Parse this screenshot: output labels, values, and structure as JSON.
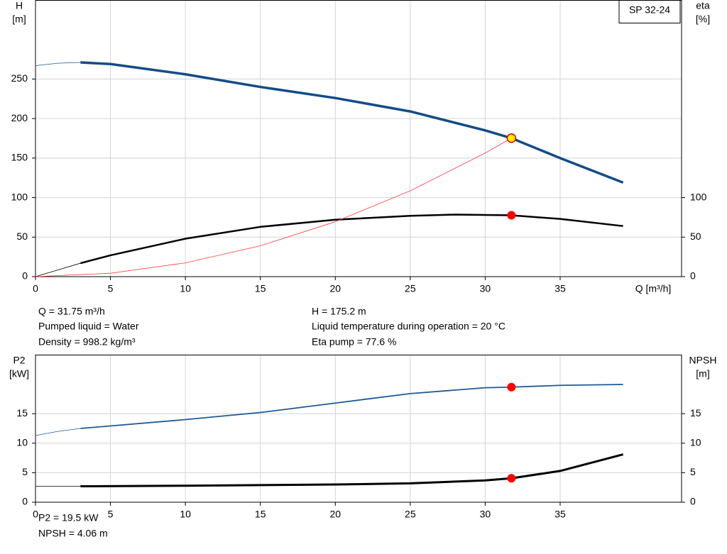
{
  "chart_data": [
    {
      "type": "line",
      "title": "SP 32-24",
      "xlabel": "Q [m³/h]",
      "ylabel": "H",
      "yunit": "[m]",
      "y2label": "eta",
      "y2unit": "[%]",
      "xlim": [
        0,
        43.1
      ],
      "xticks": [
        0,
        5,
        10,
        15,
        20,
        25,
        30,
        35
      ],
      "ylim": [
        0,
        350
      ],
      "yticks": [
        0,
        50,
        100,
        150,
        200,
        250
      ],
      "y2lim": [
        0,
        350
      ],
      "y2ticks": [
        0,
        50,
        100
      ],
      "grid": true,
      "series": [
        {
          "color": "#1f5a94",
          "line_width": 0.8,
          "x": [
            0,
            1.5,
            3
          ],
          "values": [
            267,
            270,
            271
          ]
        },
        {
          "color": "#144b86",
          "line_width": 3.5,
          "x": [
            3,
            5,
            10,
            15,
            20,
            25,
            30,
            31.75,
            35,
            39.2
          ],
          "values": [
            271,
            269,
            256,
            240,
            226,
            209,
            185,
            175.2,
            150,
            119
          ]
        },
        {
          "color": "#000000",
          "line_width": 0.8,
          "axis": "y2",
          "x": [
            0,
            3
          ],
          "values": [
            0,
            17
          ]
        },
        {
          "color": "#000000",
          "line_width": 2.5,
          "axis": "y2",
          "x": [
            3,
            5,
            10,
            15,
            20,
            25,
            28,
            31.75,
            35,
            39.2
          ],
          "values": [
            17,
            27,
            48,
            63,
            72,
            77,
            78.5,
            77.6,
            73,
            64
          ]
        },
        {
          "color": "#ff3b3b",
          "line_width": 0.8,
          "x": [
            0,
            5,
            10,
            15,
            20,
            25,
            30,
            31.75
          ],
          "values": [
            0,
            4.3,
            17.4,
            39,
            69.5,
            108.6,
            156.4,
            175.2
          ]
        }
      ],
      "markers": [
        {
          "x": 31.75,
          "y": 175.2,
          "color": "#ffee00"
        },
        {
          "x": 31.75,
          "y": 77.6,
          "axis": "y2",
          "color": "#ff0000"
        }
      ],
      "annotations": [
        "Q = 31.75 m³/h",
        "Pumped liquid = Water",
        "Density = 998.2 kg/m³",
        "H = 175.2 m",
        "Liquid temperature during operation = 20 °C",
        "Eta pump = 77.6 %"
      ]
    },
    {
      "type": "line",
      "ylabel": "P2",
      "yunit": "[kW]",
      "y2label": "NPSH",
      "y2unit": "[m]",
      "xlim": [
        0,
        43.1
      ],
      "xticks": [
        0,
        5,
        10,
        15,
        20,
        25,
        30,
        35
      ],
      "ylim": [
        0,
        25
      ],
      "yticks": [
        0,
        5,
        10,
        15
      ],
      "y2lim": [
        0,
        25
      ],
      "y2ticks": [
        0,
        5,
        10,
        15
      ],
      "grid": true,
      "series": [
        {
          "color": "#1f5a94",
          "line_width": 0.8,
          "x": [
            0,
            1.5,
            3
          ],
          "values": [
            11.3,
            12,
            12.5
          ]
        },
        {
          "color": "#1f5a94",
          "line_width": 1.8,
          "x": [
            3,
            10,
            15,
            20,
            25,
            30,
            31.75,
            35,
            39.2
          ],
          "values": [
            12.5,
            14,
            15.2,
            16.8,
            18.4,
            19.4,
            19.5,
            19.8,
            19.95
          ]
        },
        {
          "color": "#000000",
          "line_width": 0.8,
          "axis": "y2",
          "x": [
            0,
            3
          ],
          "values": [
            2.7,
            2.7
          ]
        },
        {
          "color": "#000000",
          "line_width": 3,
          "axis": "y2",
          "x": [
            3,
            10,
            15,
            20,
            25,
            30,
            31.75,
            35,
            39.2
          ],
          "values": [
            2.7,
            2.8,
            2.9,
            3.0,
            3.2,
            3.7,
            4.06,
            5.3,
            8.1
          ]
        }
      ],
      "markers": [
        {
          "x": 31.75,
          "y": 19.5,
          "color": "#ff0000"
        },
        {
          "x": 31.75,
          "y": 4.06,
          "axis": "y2",
          "color": "#ff0000"
        }
      ],
      "annotations": [
        "P2 = 19.5 kW",
        "NPSH = 4.06 m"
      ]
    }
  ]
}
